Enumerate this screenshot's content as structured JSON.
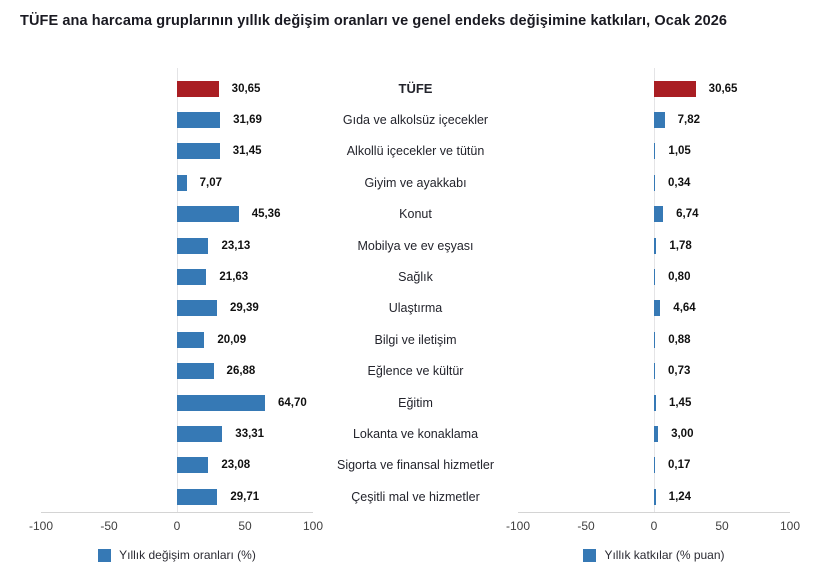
{
  "title": "TÜFE ana harcama gruplarının yıllık değişim oranları ve genel endeks değişimine katkıları, Ocak 2026",
  "chart_data": {
    "type": "bar",
    "orientation": "horizontal",
    "categories": [
      "TÜFE",
      "Gıda ve alkolsüz içecekler",
      "Alkollü içecekler ve tütün",
      "Giyim ve ayakkabı",
      "Konut",
      "Mobilya ve ev eşyası",
      "Sağlık",
      "Ulaştırma",
      "Bilgi ve iletişim",
      "Eğlence ve kültür",
      "Eğitim",
      "Lokanta ve konaklama",
      "Sigorta ve finansal hizmetler",
      "Çeşitli mal ve hizmetler"
    ],
    "series": [
      {
        "name": "Yıllık değişim oranları (%)",
        "values": [
          30.65,
          31.69,
          31.45,
          7.07,
          45.36,
          23.13,
          21.63,
          29.39,
          20.09,
          26.88,
          64.7,
          33.31,
          23.08,
          29.71
        ],
        "value_labels": [
          "30,65",
          "31,69",
          "31,45",
          "7,07",
          "45,36",
          "23,13",
          "21,63",
          "29,39",
          "20,09",
          "26,88",
          "64,70",
          "33,31",
          "23,08",
          "29,71"
        ]
      },
      {
        "name": "Yıllık katkılar (% puan)",
        "values": [
          30.65,
          7.82,
          1.05,
          0.34,
          6.74,
          1.78,
          0.8,
          4.64,
          0.88,
          0.73,
          1.45,
          3.0,
          0.17,
          1.24
        ],
        "value_labels": [
          "30,65",
          "7,82",
          "1,05",
          "0,34",
          "6,74",
          "1,78",
          "0,80",
          "4,64",
          "0,88",
          "0,73",
          "1,45",
          "3,00",
          "0,17",
          "1,24"
        ]
      }
    ],
    "xlim": [
      -100,
      100
    ],
    "xticks": [
      -100,
      -50,
      0,
      50,
      100
    ],
    "legend_position": "bottom",
    "highlight_category": "TÜFE",
    "grid": false
  },
  "colors": {
    "bar": "#3679b5",
    "highlight": "#a91e23",
    "axis_line": "#d4d4d4",
    "zero_line": "#e4e4e6",
    "value_text": "#111111",
    "category_text": "#23242c",
    "tick_text": "#404040"
  }
}
